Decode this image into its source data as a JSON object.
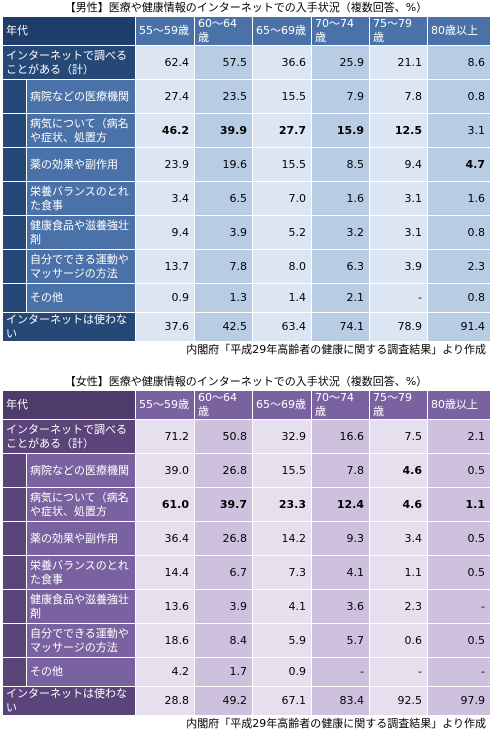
{
  "tables": [
    {
      "title": "【男性】医療や健康情報のインターネットでの入手状況（複数回答、%）",
      "header": [
        "年代",
        "55～59歳",
        "60～64歳",
        "65～69歳",
        "70～74歳",
        "75～79歳",
        "80歳以上"
      ],
      "total": {
        "label": "インターネットで調べることがある（計）",
        "values": [
          "62.4",
          "57.5",
          "36.6",
          "25.9",
          "21.1",
          "8.6"
        ]
      },
      "breakdown": [
        {
          "label": "病院などの医療機関",
          "values": [
            "27.4",
            "23.5",
            "15.5",
            "7.9",
            "7.8",
            "0.8"
          ]
        },
        {
          "label": "病気について（病名や症状、処置方",
          "values": [
            "46.2",
            "39.9",
            "27.7",
            "15.9",
            "12.5",
            "3.1"
          ],
          "bold": [
            0,
            1,
            2,
            3,
            4
          ]
        },
        {
          "label": "薬の効果や副作用",
          "values": [
            "23.9",
            "19.6",
            "15.5",
            "8.5",
            "9.4",
            "4.7"
          ],
          "bold": [
            5
          ]
        },
        {
          "label": "栄養バランスのとれた食事",
          "values": [
            "3.4",
            "6.5",
            "7.0",
            "1.6",
            "3.1",
            "1.6"
          ]
        },
        {
          "label": "健康食品や滋養強壮剤",
          "values": [
            "9.4",
            "3.9",
            "5.2",
            "3.2",
            "3.1",
            "0.8"
          ]
        },
        {
          "label": "自分でできる運動やマッサージの方法",
          "values": [
            "13.7",
            "7.8",
            "8.0",
            "6.3",
            "3.9",
            "2.3"
          ]
        },
        {
          "label": "その他",
          "values": [
            "0.9",
            "1.3",
            "1.4",
            "2.1",
            "-",
            "0.8"
          ]
        }
      ],
      "not_using": {
        "label": "インターネットは使わない",
        "values": [
          "37.6",
          "42.5",
          "63.4",
          "74.1",
          "78.9",
          "91.4"
        ]
      },
      "source": "内閣府「平成29年高齢者の健康に関する調査結果」より作成"
    },
    {
      "title": "【女性】医療や健康情報のインターネットでの入手状況（複数回答、%）",
      "header": [
        "年代",
        "55～59歳",
        "60～64歳",
        "65～69歳",
        "70～74歳",
        "75～79歳",
        "80歳以上"
      ],
      "total": {
        "label": "インターネットで調べることがある（計）",
        "values": [
          "71.2",
          "50.8",
          "32.9",
          "16.6",
          "7.5",
          "2.1"
        ]
      },
      "breakdown": [
        {
          "label": "病院などの医療機関",
          "values": [
            "39.0",
            "26.8",
            "15.5",
            "7.8",
            "4.6",
            "0.5"
          ],
          "bold": [
            4
          ]
        },
        {
          "label": "病気について（病名や症状、処置方",
          "values": [
            "61.0",
            "39.7",
            "23.3",
            "12.4",
            "4.6",
            "1.1"
          ],
          "bold": [
            0,
            1,
            2,
            3,
            4,
            5
          ]
        },
        {
          "label": "薬の効果や副作用",
          "values": [
            "36.4",
            "26.8",
            "14.2",
            "9.3",
            "3.4",
            "0.5"
          ]
        },
        {
          "label": "栄養バランスのとれた食事",
          "values": [
            "14.4",
            "6.7",
            "7.3",
            "4.1",
            "1.1",
            "0.5"
          ]
        },
        {
          "label": "健康食品や滋養強壮剤",
          "values": [
            "13.6",
            "3.9",
            "4.1",
            "3.6",
            "2.3",
            "-"
          ]
        },
        {
          "label": "自分でできる運動やマッサージの方法",
          "values": [
            "18.6",
            "8.4",
            "5.9",
            "5.7",
            "0.6",
            "0.5"
          ]
        },
        {
          "label": "その他",
          "values": [
            "4.2",
            "1.7",
            "0.9",
            "-",
            "-",
            "-"
          ]
        }
      ],
      "not_using": {
        "label": "インターネットは使わない",
        "values": [
          "28.8",
          "49.2",
          "67.1",
          "83.4",
          "92.5",
          "97.9"
        ]
      },
      "source": "内閣府「平成29年高齢者の健康に関する調査結果」より作成"
    }
  ]
}
